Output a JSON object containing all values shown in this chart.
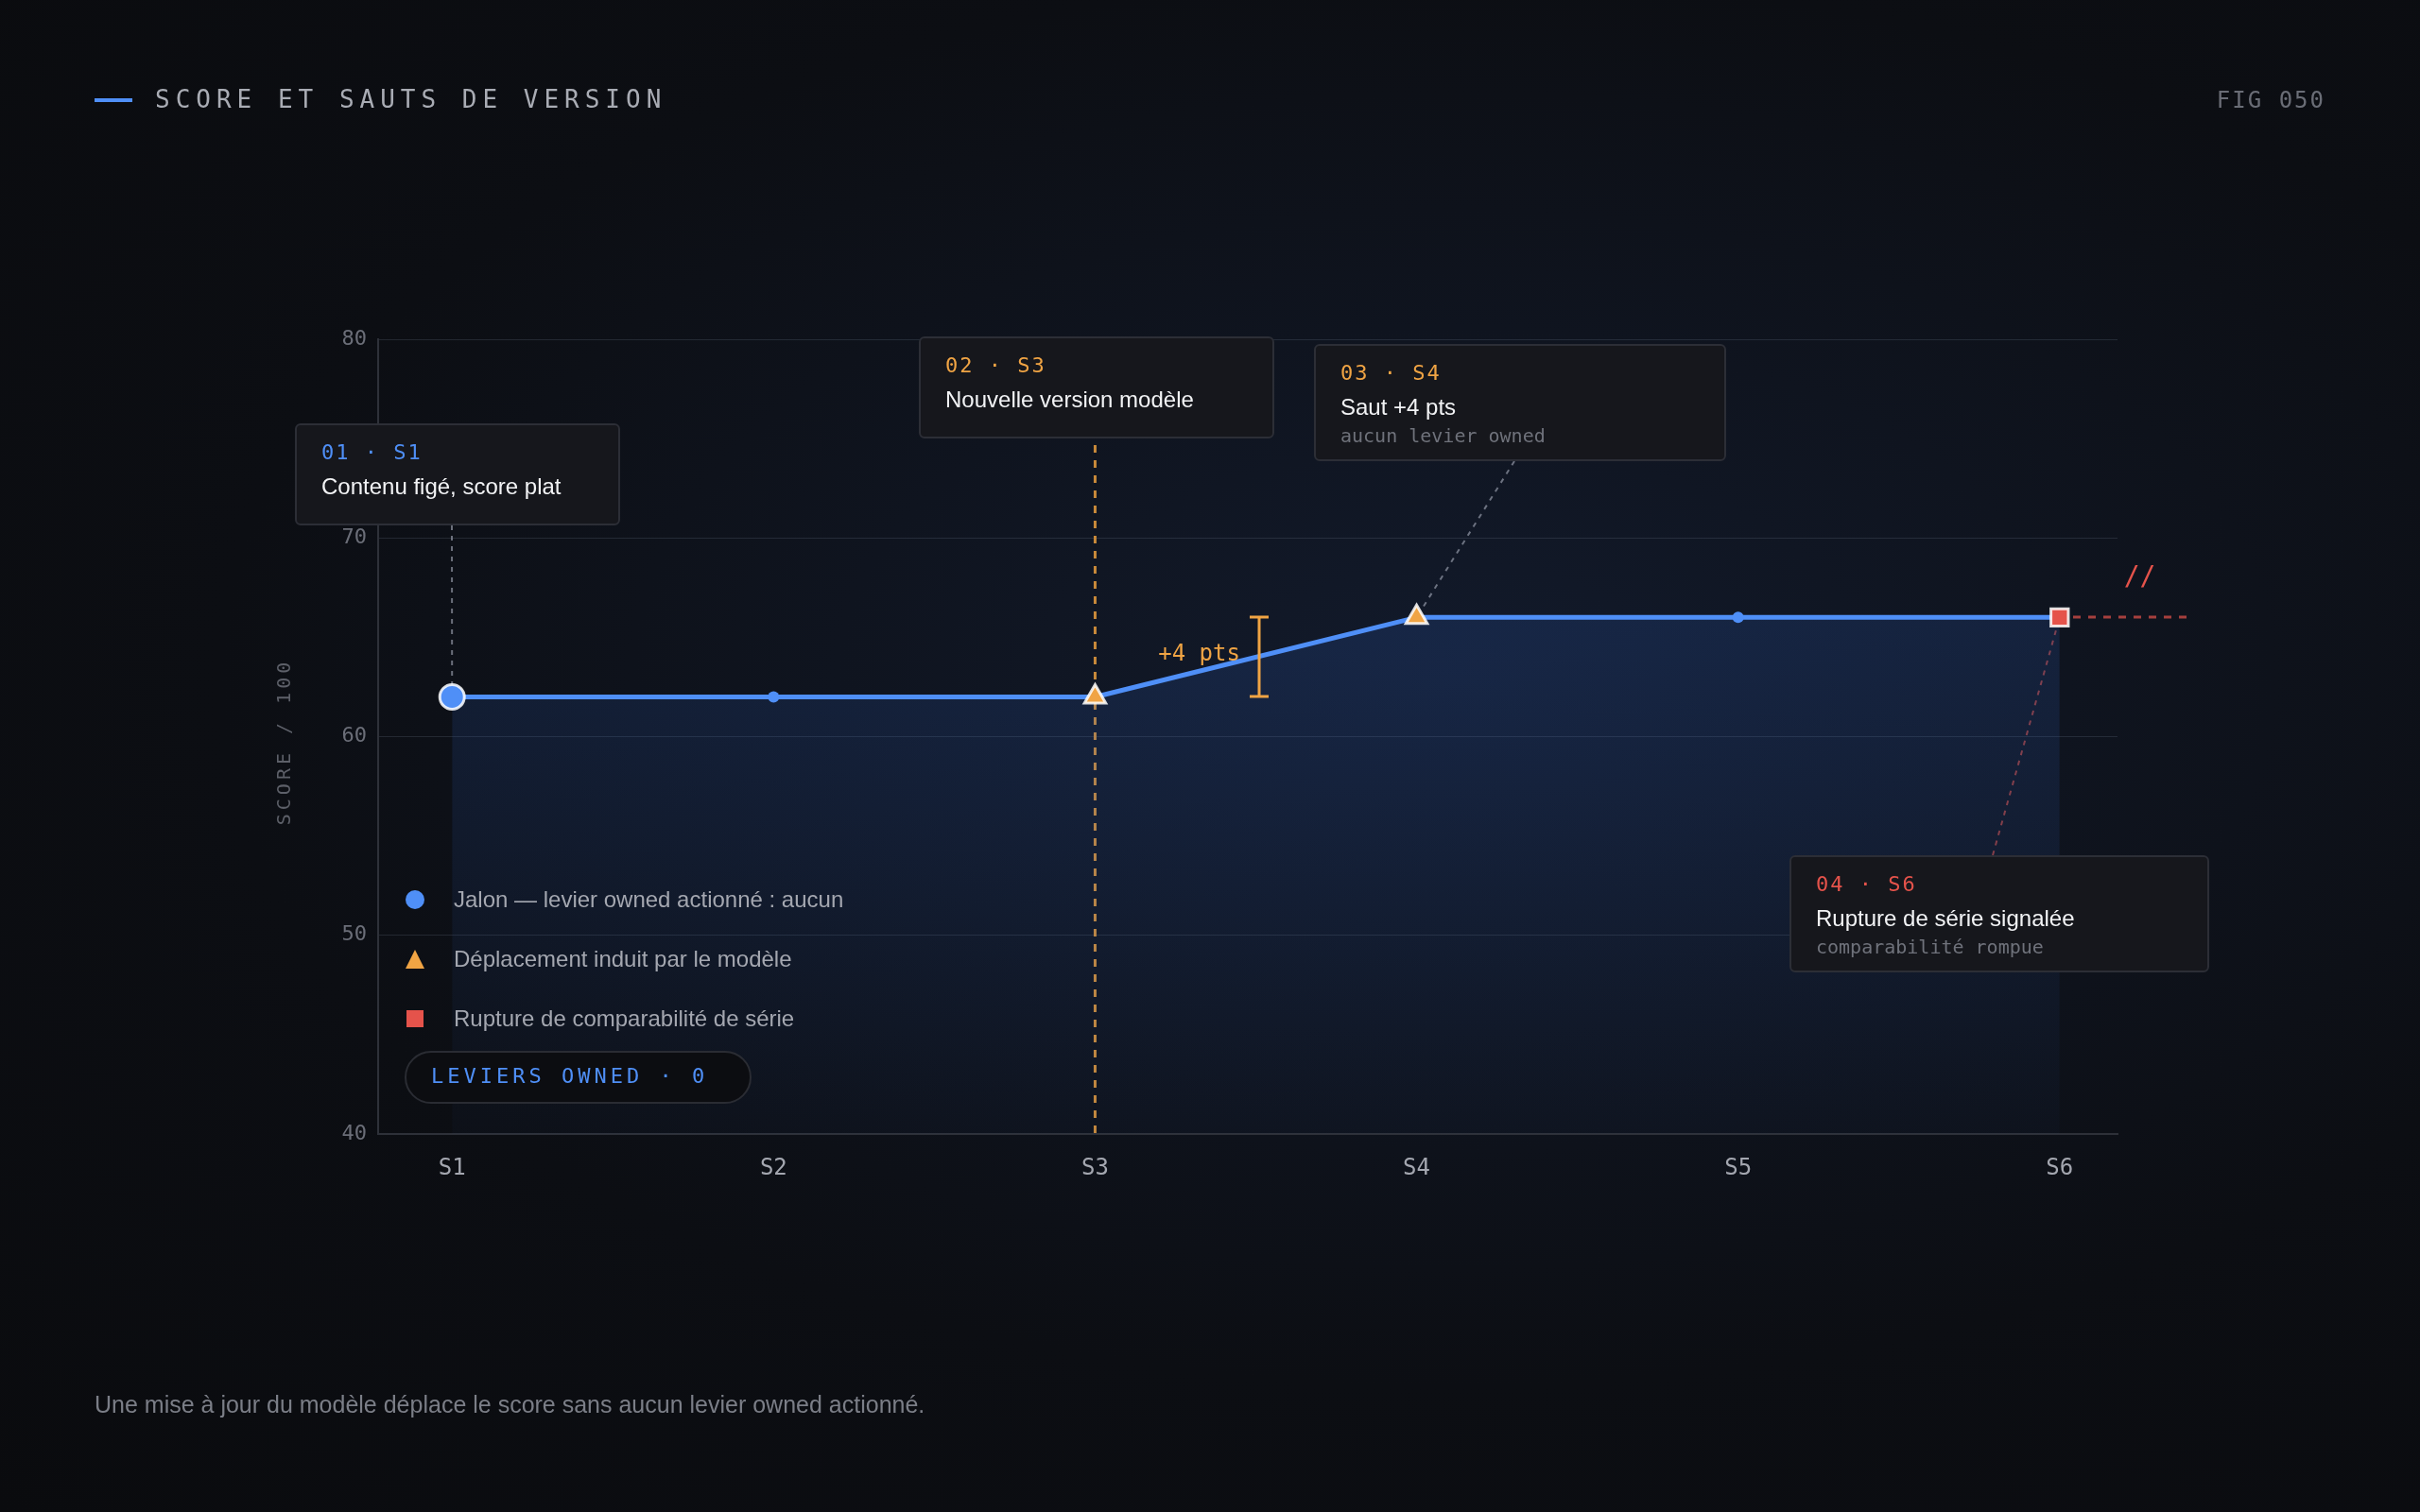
{
  "chart_data": {
    "type": "area",
    "title": "SCORE ET SAUTS DE VERSION",
    "ylabel": "SCORE / 100",
    "categories": [
      "S1",
      "S2",
      "S3",
      "S4",
      "S5",
      "S6"
    ],
    "series": [
      {
        "color": "#4f8ff7",
        "marker": "circle",
        "values": [
          62,
          62,
          62,
          66,
          66,
          66
        ]
      },
      {
        "type": "scatter",
        "name": "Jalon — levier owned actionné : aucun",
        "color": "#4f8ff7",
        "marker": "circle",
        "x": [
          "S1"
        ],
        "values": [
          62
        ]
      },
      {
        "type": "scatter",
        "name": "Déplacement induit par le modèle",
        "color": "#f0a444",
        "marker": "triangle",
        "x": [
          "S3",
          "S4"
        ],
        "values": [
          62,
          66
        ]
      },
      {
        "type": "scatter",
        "name": "Rupture de comparabilité de série",
        "color": "#e5534b",
        "marker": "square",
        "x": [
          "S6"
        ],
        "values": [
          66
        ]
      }
    ],
    "ylim": [
      40,
      80
    ],
    "yticks": [
      40,
      50,
      60,
      70,
      80
    ],
    "grid": "y",
    "legend": "bottom left",
    "ref_lines": [
      {
        "axis": "x",
        "value": "S3",
        "color": "#c98a3a",
        "line_style": "dashed"
      }
    ],
    "annotations": [
      "FIG 050",
      {
        "text": "01 · S1\nContenu figé, score plat",
        "x": "S1",
        "y": 62
      },
      "02 · S3\nNouvelle version modèle",
      {
        "text": "03 · S4\nSaut +4 pts\naucun levier owned",
        "x": "S4",
        "y": 66
      },
      {
        "text": "04 · S6\nRupture de série signalée\ncomparabilité rompue",
        "x": "S6",
        "y": 66
      },
      "+4 pts",
      {
        "text": "//",
        "x": "S6",
        "y": 66
      },
      "LEVIERS OWNED · 0",
      "Une mise à jour du modèle déplace le score sans aucun levier owned actionné."
    ]
  }
}
